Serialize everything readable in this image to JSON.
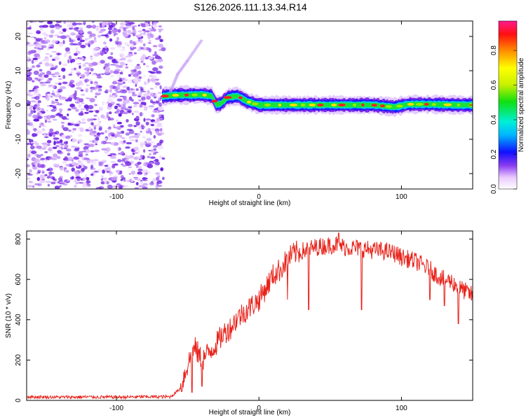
{
  "title": "S126.2026.111.13.34.R14",
  "colors": {
    "snr_line": "#e8221a",
    "spec_dots": "#8a3cf0",
    "axis": "#000000"
  },
  "chart_data": [
    {
      "type": "heatmap",
      "xlabel": "Height of straight line (km)",
      "ylabel": "Frequency (Hz)",
      "xlim": [
        -163,
        150
      ],
      "ylim": [
        -24.5,
        24.5
      ],
      "xticks": [
        -100,
        0,
        100
      ],
      "xtick_labels": [
        "-100",
        "0",
        "100"
      ],
      "yticks": [
        -20,
        -10,
        0,
        10,
        20
      ],
      "ytick_labels": [
        "-20",
        "-10",
        "0",
        "10",
        "20"
      ],
      "noise_region_km": [
        -163,
        -67
      ],
      "signal_track": {
        "x": [
          -68,
          -62,
          -55,
          -48,
          -40,
          -33,
          -30,
          -27,
          -22,
          -15,
          -8,
          0,
          10,
          20,
          40,
          60,
          80,
          95,
          105,
          120,
          140,
          150
        ],
        "freq": [
          2.5,
          2.8,
          2.9,
          2.9,
          3.0,
          2.6,
          0.2,
          0.3,
          2.2,
          2.6,
          1.0,
          0.0,
          0.0,
          0.0,
          0.0,
          0.0,
          0.0,
          -0.6,
          0.2,
          0.2,
          0.0,
          0.0
        ]
      },
      "diagonal_streak": {
        "x": [
          -62,
          -57,
          -50,
          -40
        ],
        "freq": [
          4,
          9,
          13,
          19
        ]
      },
      "colorbar": {
        "label": "Normalized spectral amplitude",
        "ticks": [
          0.0,
          0.2,
          0.4,
          0.6,
          0.8
        ],
        "tick_labels": [
          "0.0",
          "0.2",
          "0.4",
          "0.6",
          "0.8"
        ],
        "range": [
          0,
          0.97
        ]
      }
    },
    {
      "type": "line",
      "xlabel": "Height of straight line (km)",
      "ylabel": "SNR (10 * v/v)",
      "xlim": [
        -163,
        150
      ],
      "ylim": [
        0,
        840
      ],
      "xticks": [
        -100,
        0,
        100
      ],
      "xtick_labels": [
        "-100",
        "0",
        "100"
      ],
      "yticks": [
        0,
        200,
        400,
        600,
        800
      ],
      "ytick_labels": [
        "0",
        "200",
        "400",
        "600",
        "800"
      ],
      "series": [
        {
          "name": "SNR",
          "x": [
            -163,
            -140,
            -120,
            -100,
            -80,
            -62,
            -55,
            -50,
            -45,
            -40,
            -35,
            -30,
            -25,
            -20,
            -15,
            -10,
            -5,
            0,
            5,
            10,
            15,
            20,
            25,
            30,
            40,
            50,
            55,
            60,
            70,
            80,
            88,
            95,
            100,
            105,
            110,
            115,
            120,
            125,
            130,
            135,
            140,
            145,
            150
          ],
          "values": [
            18,
            16,
            17,
            16,
            18,
            18,
            60,
            180,
            260,
            200,
            240,
            280,
            330,
            360,
            410,
            440,
            470,
            500,
            560,
            620,
            650,
            700,
            730,
            740,
            760,
            770,
            775,
            760,
            755,
            745,
            740,
            730,
            710,
            700,
            690,
            670,
            650,
            620,
            600,
            590,
            560,
            540,
            520
          ]
        }
      ],
      "spikes_down": {
        "x": [
          -47,
          -40,
          20,
          35,
          72,
          120,
          130,
          140
        ],
        "values": [
          40,
          70,
          500,
          450,
          450,
          500,
          470,
          380
        ]
      },
      "spikes_up": {
        "x": [
          56
        ],
        "values": [
          830
        ]
      }
    }
  ]
}
